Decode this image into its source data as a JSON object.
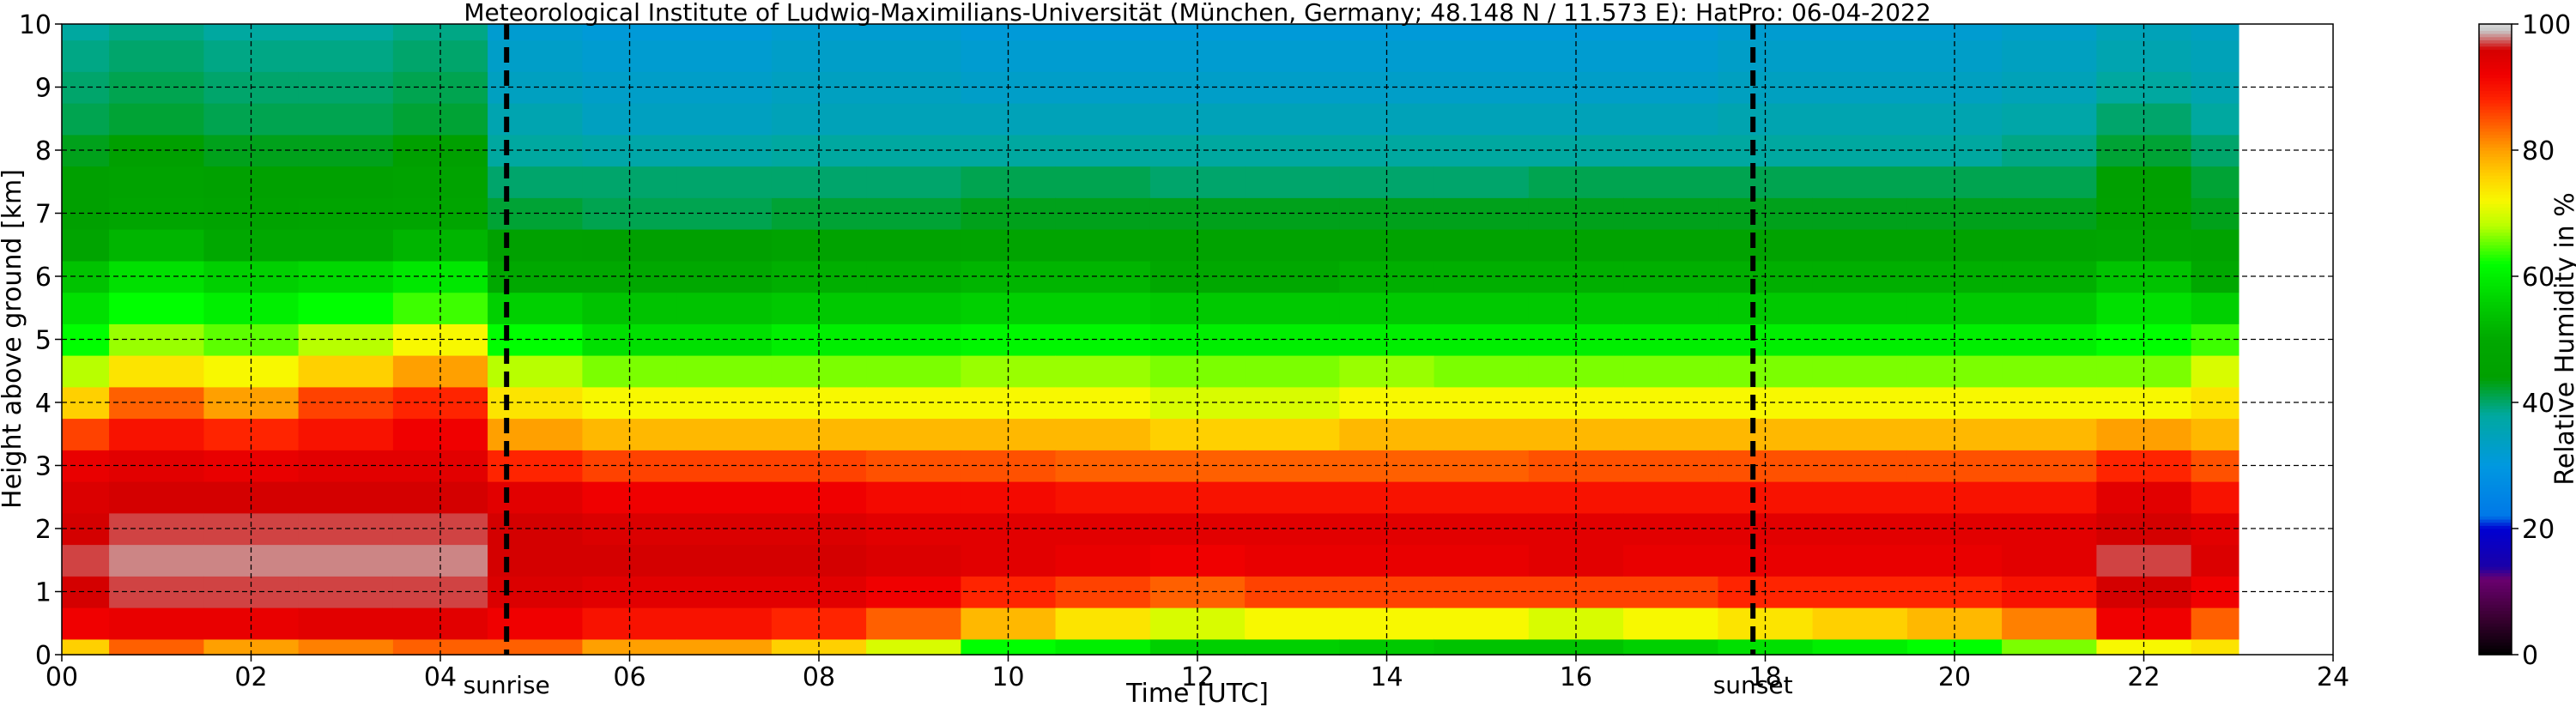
{
  "chart_data": {
    "type": "heatmap",
    "title": "Meteorological Institute of Ludwig-Maximilians-Universität (München, Germany; 48.148 N / 11.573 E):    HatPro: 06-04-2022",
    "xlabel": "Time [UTC]",
    "ylabel": "Height above ground [km]",
    "xlim": [
      0,
      24
    ],
    "ylim": [
      0,
      10
    ],
    "x_ticks": [
      "00",
      "02",
      "04",
      "06",
      "08",
      "10",
      "12",
      "14",
      "16",
      "18",
      "20",
      "22",
      "24"
    ],
    "y_ticks": [
      "0",
      "1",
      "2",
      "3",
      "4",
      "5",
      "6",
      "7",
      "8",
      "9",
      "10"
    ],
    "grid": true,
    "data_extent_hours": [
      0,
      23.0
    ],
    "colorbar": {
      "label": "Relative Humidity in %",
      "ticks": [
        "0",
        "20",
        "40",
        "60",
        "80",
        "100"
      ],
      "range": [
        0,
        100
      ]
    },
    "markers": [
      {
        "label": "sunrise",
        "x": 4.7
      },
      {
        "label": "sunset",
        "x": 17.87
      }
    ],
    "heights_km": [
      0,
      0.5,
      1,
      1.5,
      2,
      2.5,
      3,
      3.5,
      4,
      4.5,
      5,
      5.5,
      6,
      6.5,
      7,
      7.5,
      8,
      8.5,
      9,
      9.5,
      10
    ],
    "times_hours": [
      0,
      1,
      2,
      3,
      4,
      5,
      6,
      7,
      8,
      9,
      10,
      11,
      12,
      13,
      14,
      15,
      16,
      17,
      18,
      19,
      20,
      21,
      22,
      23
    ],
    "values": [
      [
        76,
        92,
        96,
        97,
        96,
        95,
        93,
        86,
        76,
        68,
        62,
        58,
        54,
        47,
        44,
        44,
        43,
        41,
        40,
        39,
        38
      ],
      [
        84,
        93,
        97,
        98,
        97,
        96,
        94,
        90,
        84,
        74,
        67,
        62,
        58,
        52,
        48,
        46,
        44,
        42,
        41,
        40,
        39
      ],
      [
        80,
        93,
        97,
        98,
        97,
        96,
        93,
        88,
        80,
        72,
        65,
        60,
        56,
        50,
        46,
        45,
        43,
        41,
        40,
        39,
        38
      ],
      [
        82,
        94,
        97,
        98,
        97,
        96,
        94,
        90,
        86,
        76,
        68,
        62,
        57,
        50,
        47,
        45,
        43,
        41,
        40,
        39,
        38
      ],
      [
        84,
        94,
        97,
        98,
        97,
        96,
        94,
        92,
        88,
        80,
        72,
        64,
        59,
        52,
        48,
        46,
        44,
        42,
        41,
        40,
        39
      ],
      [
        84,
        92,
        95,
        96,
        96,
        94,
        88,
        80,
        74,
        68,
        62,
        56,
        50,
        45,
        42,
        40,
        38,
        36,
        34,
        33,
        32
      ],
      [
        80,
        90,
        94,
        96,
        95,
        92,
        86,
        78,
        72,
        66,
        58,
        54,
        50,
        44,
        41,
        40,
        37,
        34,
        33,
        32,
        31
      ],
      [
        80,
        90,
        94,
        96,
        95,
        92,
        86,
        78,
        72,
        66,
        58,
        54,
        50,
        44,
        41,
        40,
        37,
        34,
        33,
        32,
        31
      ],
      [
        76,
        88,
        94,
        96,
        95,
        92,
        86,
        78,
        72,
        66,
        60,
        55,
        51,
        46,
        42,
        40,
        38,
        35,
        34,
        33,
        32
      ],
      [
        70,
        84,
        92,
        95,
        94,
        91,
        85,
        78,
        72,
        66,
        60,
        55,
        51,
        46,
        42,
        40,
        38,
        35,
        34,
        33,
        32
      ],
      [
        62,
        78,
        88,
        94,
        94,
        91,
        85,
        78,
        72,
        67,
        61,
        56,
        52,
        47,
        43,
        41,
        38,
        35,
        33,
        32,
        31
      ],
      [
        60,
        74,
        86,
        93,
        94,
        90,
        84,
        78,
        72,
        67,
        61,
        56,
        52,
        47,
        43,
        41,
        38,
        35,
        33,
        32,
        31
      ],
      [
        56,
        70,
        84,
        92,
        94,
        90,
        84,
        76,
        70,
        66,
        60,
        55,
        50,
        46,
        43,
        40,
        38,
        35,
        33,
        32,
        31
      ],
      [
        56,
        72,
        86,
        93,
        94,
        90,
        84,
        76,
        70,
        66,
        60,
        55,
        50,
        46,
        43,
        40,
        38,
        35,
        33,
        32,
        31
      ],
      [
        55,
        72,
        86,
        93,
        94,
        90,
        84,
        78,
        72,
        67,
        60,
        55,
        51,
        46,
        43,
        40,
        38,
        35,
        33,
        32,
        31
      ],
      [
        54,
        72,
        86,
        93,
        94,
        90,
        84,
        78,
        72,
        66,
        60,
        55,
        51,
        46,
        43,
        40,
        38,
        35,
        33,
        32,
        31
      ],
      [
        54,
        70,
        86,
        94,
        94,
        90,
        85,
        78,
        72,
        66,
        60,
        55,
        51,
        46,
        43,
        41,
        38,
        35,
        33,
        32,
        31
      ],
      [
        56,
        72,
        86,
        93,
        94,
        90,
        85,
        78,
        72,
        66,
        60,
        55,
        51,
        46,
        43,
        41,
        38,
        35,
        33,
        32,
        31
      ],
      [
        58,
        74,
        88,
        93,
        94,
        90,
        85,
        78,
        72,
        66,
        60,
        55,
        51,
        46,
        43,
        41,
        38,
        36,
        34,
        33,
        32
      ],
      [
        60,
        76,
        88,
        93,
        94,
        90,
        85,
        78,
        72,
        66,
        60,
        55,
        51,
        46,
        43,
        41,
        38,
        36,
        34,
        33,
        32
      ],
      [
        62,
        78,
        88,
        93,
        94,
        90,
        85,
        78,
        72,
        66,
        60,
        55,
        51,
        46,
        43,
        41,
        38,
        36,
        34,
        33,
        32
      ],
      [
        66,
        82,
        90,
        94,
        94,
        90,
        85,
        78,
        72,
        66,
        60,
        55,
        51,
        46,
        43,
        41,
        39,
        37,
        35,
        34,
        33
      ],
      [
        72,
        92,
        96,
        97,
        96,
        94,
        88,
        80,
        72,
        66,
        62,
        58,
        54,
        48,
        45,
        44,
        42,
        40,
        38,
        36,
        35
      ],
      [
        74,
        84,
        92,
        95,
        94,
        90,
        85,
        78,
        74,
        70,
        64,
        56,
        50,
        46,
        43,
        42,
        40,
        38,
        36,
        35,
        34
      ]
    ]
  }
}
